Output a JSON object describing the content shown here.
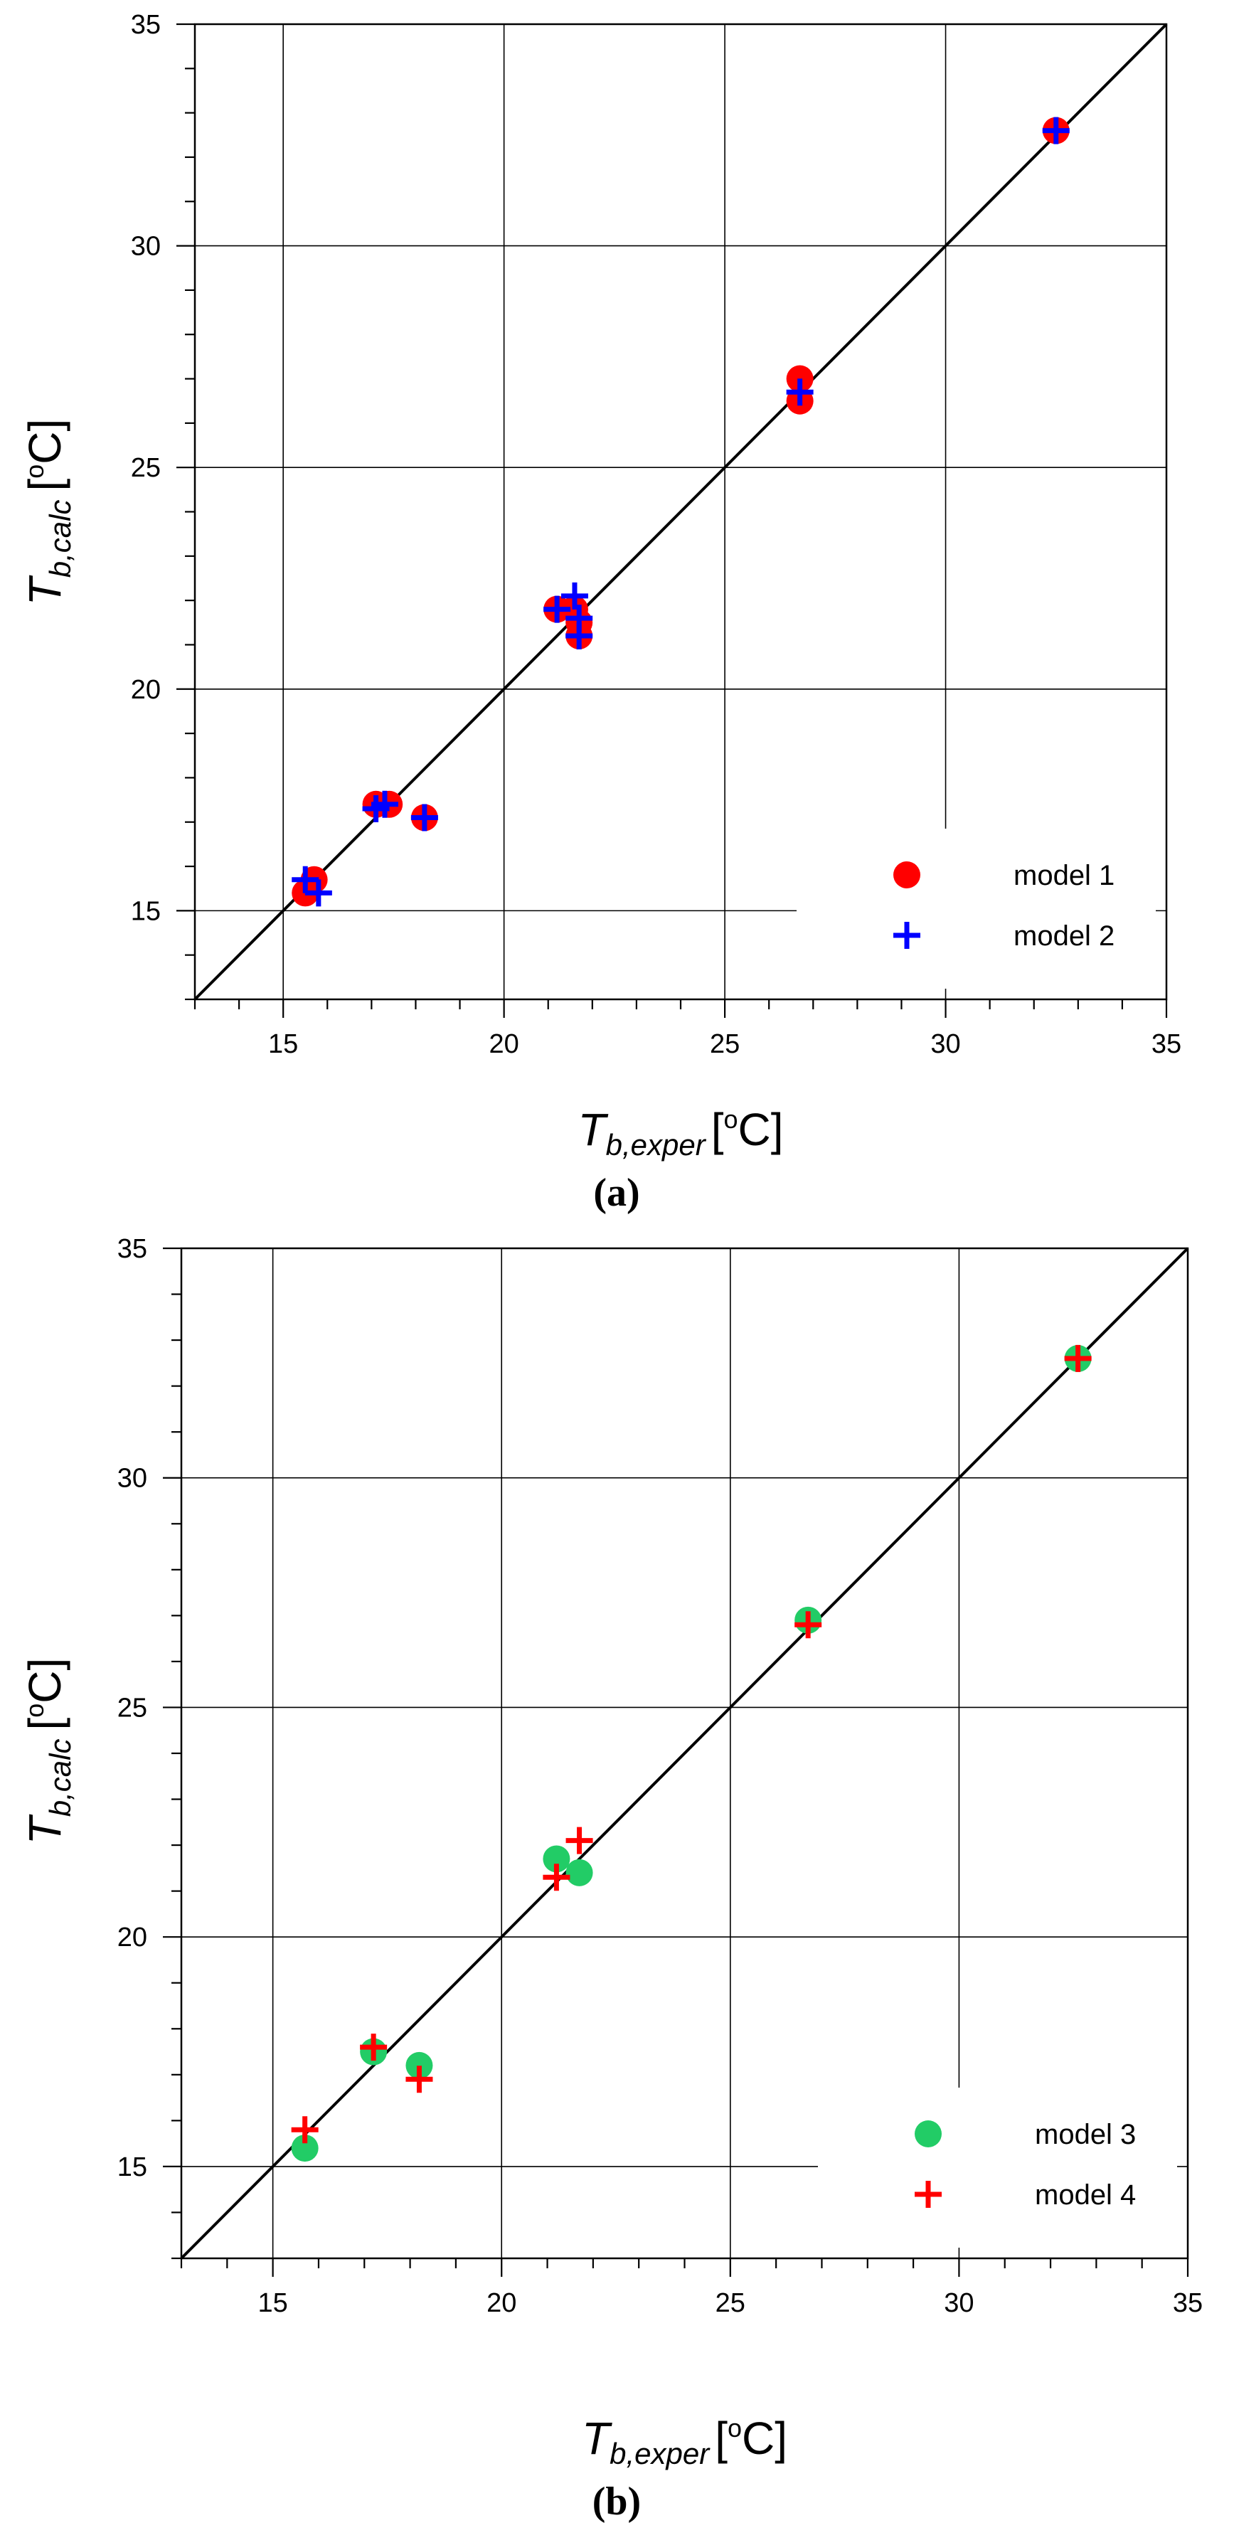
{
  "chart_data": [
    {
      "type": "scatter",
      "panel_label": "(a)",
      "xlabel": {
        "symbol": "T",
        "subscript": "b,exper",
        "unit_open": "[",
        "unit_deg": "o",
        "unit_c": "C]"
      },
      "ylabel": {
        "symbol": "T",
        "subscript": "b,calc",
        "unit_open": "[",
        "unit_deg": "o",
        "unit_c": "C]"
      },
      "xlim": [
        13,
        35
      ],
      "ylim": [
        13,
        35
      ],
      "xticks": [
        "15",
        "20",
        "25",
        "30",
        "35"
      ],
      "yticks": [
        "15",
        "20",
        "25",
        "30",
        "35"
      ],
      "grid": true,
      "diagonal": "y = x",
      "legend_position": "bottom-right",
      "series": [
        {
          "name": "model 1",
          "marker": "circle",
          "color": "#ff0000",
          "points": [
            [
              15.5,
              15.4
            ],
            [
              15.7,
              15.7
            ],
            [
              17.1,
              17.4
            ],
            [
              17.4,
              17.4
            ],
            [
              18.2,
              17.1
            ],
            [
              21.2,
              21.8
            ],
            [
              21.6,
              21.8
            ],
            [
              21.7,
              21.5
            ],
            [
              21.7,
              21.2
            ],
            [
              26.7,
              26.5
            ],
            [
              26.7,
              27.0
            ],
            [
              32.5,
              32.6
            ]
          ]
        },
        {
          "name": "model 2",
          "marker": "plus",
          "color": "#0000ff",
          "points": [
            [
              15.5,
              15.7
            ],
            [
              15.8,
              15.4
            ],
            [
              17.1,
              17.3
            ],
            [
              17.3,
              17.4
            ],
            [
              18.2,
              17.1
            ],
            [
              21.2,
              21.8
            ],
            [
              21.6,
              22.1
            ],
            [
              21.7,
              21.6
            ],
            [
              21.7,
              21.2
            ],
            [
              26.7,
              26.7
            ],
            [
              32.5,
              32.6
            ]
          ]
        }
      ]
    },
    {
      "type": "scatter",
      "panel_label": "(b)",
      "xlabel": {
        "symbol": "T",
        "subscript": "b,exper",
        "unit_open": "[",
        "unit_deg": "o",
        "unit_c": "C]"
      },
      "ylabel": {
        "symbol": "T",
        "subscript": "b,calc",
        "unit_open": "[",
        "unit_deg": "o",
        "unit_c": "C]"
      },
      "xlim": [
        13,
        35
      ],
      "ylim": [
        13,
        35
      ],
      "xticks": [
        "15",
        "20",
        "25",
        "30",
        "35"
      ],
      "yticks": [
        "15",
        "20",
        "25",
        "30",
        "35"
      ],
      "grid": true,
      "diagonal": "y = x",
      "legend_position": "bottom-right",
      "series": [
        {
          "name": "model 3",
          "marker": "circle",
          "color": "#22cc66",
          "points": [
            [
              15.7,
              15.4
            ],
            [
              17.2,
              17.5
            ],
            [
              18.2,
              17.2
            ],
            [
              21.2,
              21.7
            ],
            [
              21.7,
              21.4
            ],
            [
              26.7,
              26.9
            ],
            [
              32.6,
              32.6
            ]
          ]
        },
        {
          "name": "model 4",
          "marker": "plus",
          "color": "#ff0000",
          "points": [
            [
              15.7,
              15.8
            ],
            [
              17.2,
              17.6
            ],
            [
              18.2,
              16.9
            ],
            [
              21.2,
              21.3
            ],
            [
              21.7,
              22.1
            ],
            [
              26.7,
              26.8
            ],
            [
              32.6,
              32.6
            ]
          ]
        }
      ]
    }
  ]
}
